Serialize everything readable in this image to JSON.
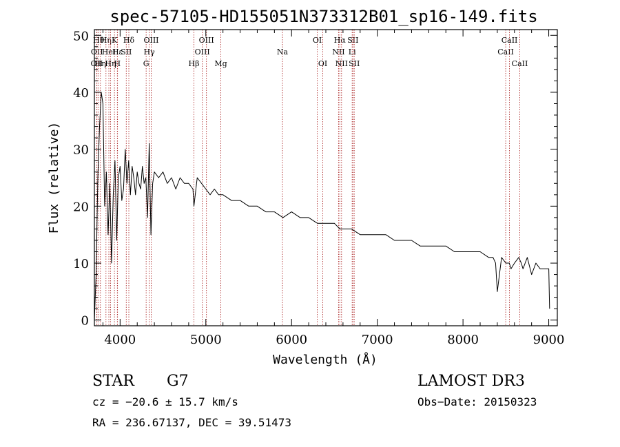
{
  "chart_data": {
    "type": "line",
    "title": "spec-57105-HD155051N373312B01_sp16-149.fits",
    "xlabel": "Wavelength (Å)",
    "ylabel": "Flux (relative)",
    "xlim": [
      3700,
      9100
    ],
    "ylim": [
      -1,
      51
    ],
    "xticks": [
      4000,
      5000,
      6000,
      7000,
      8000,
      9000
    ],
    "xtick_labels": [
      "4000",
      "5000",
      "6000",
      "7000",
      "8000",
      "9000"
    ],
    "yticks": [
      0,
      10,
      20,
      30,
      40,
      50
    ],
    "ytick_labels": [
      "0",
      "10",
      "20",
      "30",
      "40",
      "50"
    ],
    "grid": false,
    "series": [
      {
        "name": "spectrum",
        "x": [
          3700,
          3720,
          3740,
          3760,
          3780,
          3800,
          3820,
          3840,
          3860,
          3880,
          3900,
          3920,
          3940,
          3960,
          3980,
          4000,
          4020,
          4040,
          4060,
          4080,
          4100,
          4120,
          4140,
          4160,
          4180,
          4200,
          4220,
          4240,
          4260,
          4280,
          4300,
          4320,
          4340,
          4360,
          4380,
          4400,
          4450,
          4500,
          4550,
          4600,
          4650,
          4700,
          4750,
          4800,
          4850,
          4861,
          4900,
          4950,
          5000,
          5050,
          5100,
          5150,
          5200,
          5300,
          5400,
          5500,
          5600,
          5700,
          5800,
          5900,
          6000,
          6100,
          6200,
          6300,
          6400,
          6500,
          6563,
          6600,
          6700,
          6800,
          6900,
          7000,
          7100,
          7200,
          7300,
          7400,
          7500,
          7600,
          7700,
          7800,
          7900,
          8000,
          8100,
          8200,
          8300,
          8350,
          8380,
          8400,
          8450,
          8500,
          8540,
          8560,
          8600,
          8650,
          8680,
          8700,
          8750,
          8800,
          8850,
          8900,
          8950,
          9000,
          9010
        ],
        "values": [
          0,
          8,
          25,
          34,
          40,
          38,
          20,
          26,
          15,
          24,
          10,
          22,
          28,
          14,
          25,
          27,
          21,
          23,
          30,
          24,
          28,
          22,
          27,
          25,
          22,
          26,
          24,
          23,
          27,
          24,
          25,
          18,
          31,
          15,
          24,
          26,
          25,
          26,
          24,
          25,
          23,
          25,
          24,
          24,
          23,
          20,
          25,
          24,
          23,
          22,
          23,
          22,
          22,
          21,
          21,
          20,
          20,
          19,
          19,
          18,
          19,
          18,
          18,
          17,
          17,
          17,
          16,
          16,
          16,
          15,
          15,
          15,
          15,
          14,
          14,
          14,
          13,
          13,
          13,
          13,
          12,
          12,
          12,
          12,
          11,
          11,
          10,
          5,
          11,
          10,
          10,
          9,
          10,
          11,
          10,
          9,
          11,
          8,
          10,
          9,
          9,
          9,
          2
        ]
      }
    ],
    "lines": [
      {
        "x": 3727,
        "label": "OII",
        "row": 2
      },
      {
        "x": 3730,
        "label": "OII",
        "row": 1
      },
      {
        "x": 3750,
        "label": "Hθ",
        "row": 0
      },
      {
        "x": 3770,
        "label": "Hη",
        "row": 2
      },
      {
        "x": 3835,
        "label": "Hη",
        "row": 0
      },
      {
        "x": 3869,
        "label": "HeI",
        "row": 1
      },
      {
        "x": 3889,
        "label": "Hη",
        "row": 2
      },
      {
        "x": 3934,
        "label": "K",
        "row": 0
      },
      {
        "x": 3968,
        "label": "H",
        "row": 2
      },
      {
        "x": 3970,
        "label": "Hε",
        "row": 1
      },
      {
        "x": 4072,
        "label": "SII",
        "row": 1
      },
      {
        "x": 4102,
        "label": "Hδ",
        "row": 0
      },
      {
        "x": 4304,
        "label": "G",
        "row": 2
      },
      {
        "x": 4340,
        "label": "Hγ",
        "row": 1
      },
      {
        "x": 4363,
        "label": "OIII",
        "row": 0
      },
      {
        "x": 4861,
        "label": "Hβ",
        "row": 2
      },
      {
        "x": 4959,
        "label": "OIII",
        "row": 1
      },
      {
        "x": 5007,
        "label": "OIII",
        "row": 0
      },
      {
        "x": 5175,
        "label": "Mg",
        "row": 2
      },
      {
        "x": 5894,
        "label": "Na",
        "row": 1
      },
      {
        "x": 6300,
        "label": "OI",
        "row": 0
      },
      {
        "x": 6364,
        "label": "OI",
        "row": 2
      },
      {
        "x": 6548,
        "label": "NII",
        "row": 1
      },
      {
        "x": 6563,
        "label": "Hα",
        "row": 0
      },
      {
        "x": 6583,
        "label": "NII",
        "row": 2
      },
      {
        "x": 6707,
        "label": "Li",
        "row": 1
      },
      {
        "x": 6716,
        "label": "SII",
        "row": 0
      },
      {
        "x": 6731,
        "label": "SII",
        "row": 2
      },
      {
        "x": 8498,
        "label": "CaII",
        "row": 1
      },
      {
        "x": 8542,
        "label": "CaII",
        "row": 0
      },
      {
        "x": 8662,
        "label": "CaII",
        "row": 2
      }
    ]
  },
  "info": {
    "class": "STAR",
    "subclass": "G7",
    "survey": "LAMOST DR3",
    "cz": "cz = −20.6 ± 15.7 km/s",
    "obs_date": "Obs−Date: 20150323",
    "radec": "RA = 236.67137, DEC =  39.51473"
  }
}
